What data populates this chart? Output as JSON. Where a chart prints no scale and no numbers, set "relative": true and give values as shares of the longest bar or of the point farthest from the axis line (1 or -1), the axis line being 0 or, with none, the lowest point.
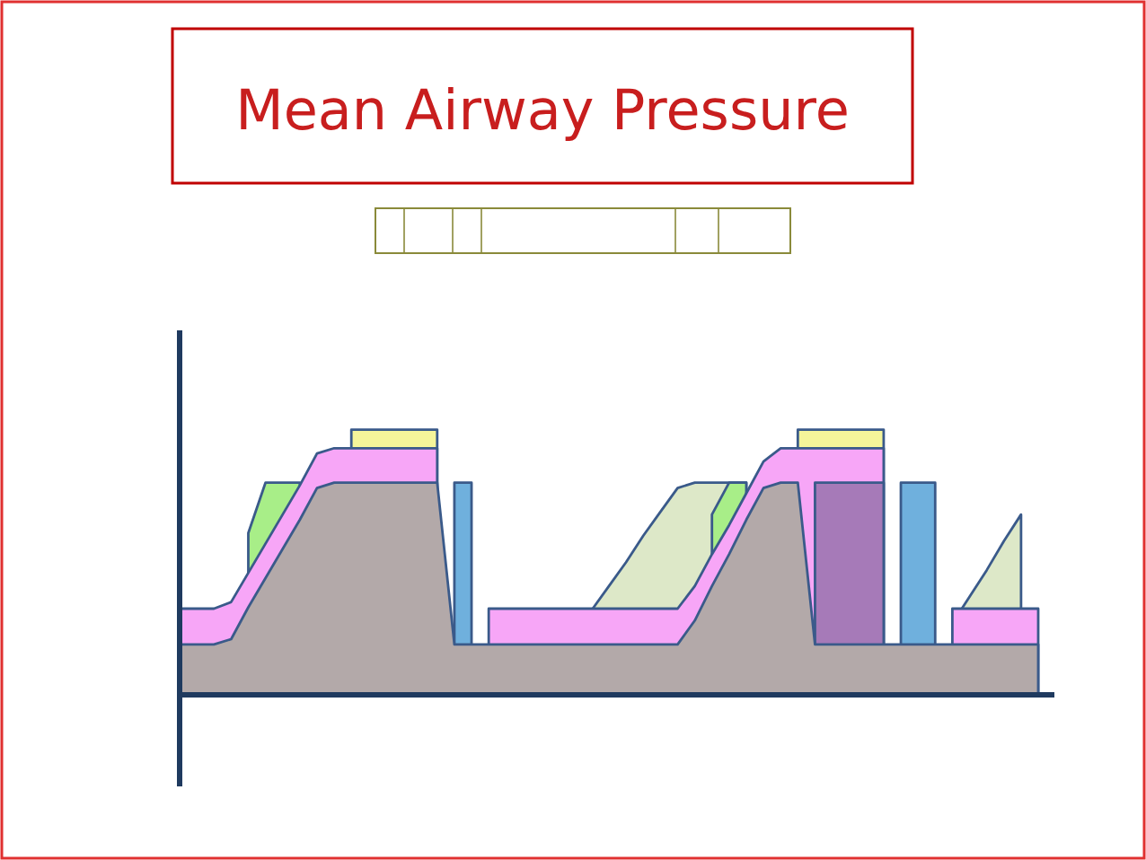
{
  "chart_data": {
    "type": "area",
    "title": "Mean Airway Pressure",
    "relative": true,
    "categories": [
      null,
      null,
      null,
      null,
      null,
      null,
      null,
      null,
      null,
      null,
      null,
      null,
      null,
      null,
      null,
      null,
      null,
      null,
      null,
      null,
      null,
      null,
      null,
      null,
      null,
      null,
      null,
      null,
      null,
      null,
      null,
      null,
      null,
      null,
      null,
      null,
      null,
      null,
      null,
      null,
      null,
      null,
      null,
      null,
      null,
      null,
      null,
      null,
      null,
      null,
      null
    ],
    "series": [
      {
        "color": "#dde8c8",
        "values": [
          null,
          null,
          null,
          null,
          null,
          null,
          null,
          null,
          null,
          null,
          null,
          null,
          null,
          null,
          null,
          null,
          null,
          null,
          null,
          null,
          null,
          null,
          null,
          null,
          0.32,
          0.41,
          0.5,
          0.6,
          0.69,
          0.78,
          0.8,
          0.8,
          0.8,
          0.8,
          null,
          null,
          null,
          null,
          null,
          null,
          null,
          null,
          null,
          null,
          null,
          0.27,
          0.37,
          0.47,
          0.58,
          0.68,
          null
        ]
      },
      {
        "color": "#f5f59a",
        "values": [
          null,
          null,
          null,
          null,
          null,
          null,
          null,
          null,
          null,
          null,
          1,
          1,
          1,
          1,
          1,
          1,
          null,
          null,
          null,
          null,
          null,
          null,
          null,
          null,
          null,
          null,
          null,
          null,
          null,
          null,
          null,
          null,
          null,
          null,
          null,
          null,
          1,
          1,
          1,
          1,
          1,
          1,
          null,
          null,
          null,
          null,
          null,
          null,
          null,
          null,
          null
        ]
      },
      {
        "color": "#a8ee88",
        "values": [
          null,
          null,
          null,
          null,
          0.61,
          0.8,
          0.8,
          0.8,
          null,
          null,
          null,
          null,
          null,
          null,
          null,
          null,
          null,
          null,
          null,
          null,
          null,
          null,
          null,
          null,
          null,
          null,
          null,
          null,
          null,
          null,
          null,
          0.68,
          0.8,
          0.8,
          null,
          null,
          null,
          null,
          null,
          null,
          null,
          null,
          null,
          null,
          null,
          null,
          null,
          null,
          null,
          null,
          null
        ]
      },
      {
        "color": "#f7a6f7",
        "values": [
          0.325,
          0.325,
          0.325,
          0.35,
          0.46,
          0.57,
          0.68,
          0.79,
          0.91,
          0.93,
          0.93,
          0.93,
          0.93,
          0.93,
          0.93,
          0.93,
          null,
          null,
          0.325,
          0.325,
          0.325,
          0.325,
          0.325,
          0.325,
          0.325,
          0.325,
          0.325,
          0.325,
          0.325,
          0.325,
          0.41,
          0.53,
          0.64,
          0.76,
          0.88,
          0.93,
          0.93,
          0.93,
          0.93,
          0.93,
          0.93,
          0.93,
          null,
          null,
          null,
          0.325,
          0.325,
          0.325,
          0.325,
          0.325,
          0.325
        ]
      },
      {
        "color": "#6fb0dd",
        "values": [
          null,
          null,
          null,
          null,
          null,
          null,
          null,
          null,
          null,
          null,
          null,
          null,
          null,
          null,
          null,
          null,
          0.8,
          0.8,
          null,
          null,
          null,
          null,
          null,
          null,
          null,
          null,
          null,
          null,
          null,
          null,
          null,
          null,
          null,
          null,
          null,
          null,
          null,
          null,
          null,
          null,
          null,
          null,
          0.8,
          0.8,
          0.8,
          null,
          null,
          null,
          null,
          null,
          null
        ]
      },
      {
        "color": "#a67ab8",
        "values": [
          null,
          null,
          null,
          null,
          null,
          null,
          null,
          null,
          null,
          null,
          null,
          null,
          null,
          null,
          null,
          null,
          null,
          null,
          null,
          null,
          null,
          null,
          null,
          null,
          null,
          null,
          null,
          null,
          null,
          null,
          null,
          null,
          null,
          null,
          null,
          null,
          null,
          0.8,
          0.8,
          0.8,
          0.8,
          0.8,
          null,
          null,
          null,
          null,
          null,
          null,
          null,
          null,
          null
        ]
      },
      {
        "color": "#b3a9a9",
        "values": [
          0.19,
          0.19,
          0.19,
          0.21,
          0.33,
          0.44,
          0.55,
          0.66,
          0.78,
          0.8,
          0.8,
          0.8,
          0.8,
          0.8,
          0.8,
          0.8,
          0.19,
          0.19,
          0.19,
          0.19,
          0.19,
          0.19,
          0.19,
          0.19,
          0.19,
          0.19,
          0.19,
          0.19,
          0.19,
          0.19,
          0.28,
          0.41,
          0.53,
          0.66,
          0.78,
          0.8,
          0.8,
          0.19,
          0.19,
          0.19,
          0.19,
          0.19,
          0.19,
          0.19,
          0.19,
          0.19,
          0.19,
          0.19,
          0.19,
          0.19,
          0.19
        ]
      }
    ]
  }
}
